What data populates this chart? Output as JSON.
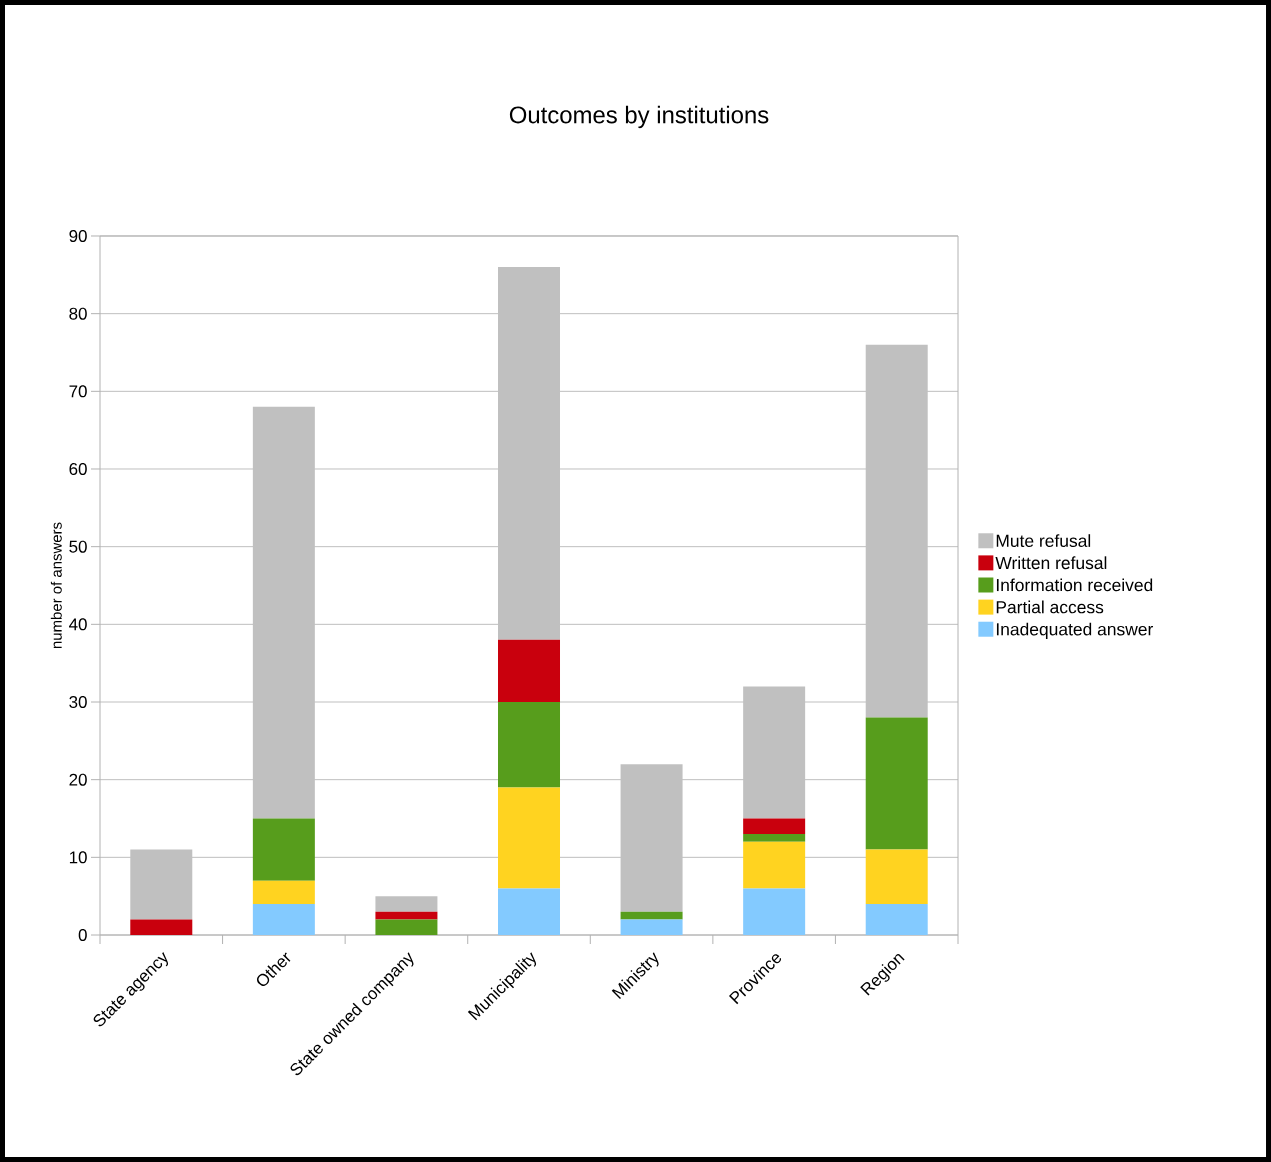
{
  "chart_data": {
    "type": "bar",
    "title": "Outcomes by institutions",
    "ylabel": "number of answers",
    "categories": [
      "State agency",
      "Other",
      "State owned company",
      "Municipality",
      "Ministry",
      "Province",
      "Region"
    ],
    "series": [
      {
        "name": "Inadequated answer",
        "color": "#83caff",
        "values": [
          0,
          4,
          0,
          6,
          2,
          6,
          4
        ]
      },
      {
        "name": "Partial access",
        "color": "#ffd320",
        "values": [
          0,
          3,
          0,
          13,
          0,
          6,
          7
        ]
      },
      {
        "name": "Information received",
        "color": "#579d1c",
        "values": [
          0,
          8,
          2,
          11,
          1,
          1,
          17
        ]
      },
      {
        "name": "Written refusal",
        "color": "#c9000d",
        "values": [
          2,
          0,
          1,
          8,
          0,
          2,
          0
        ]
      },
      {
        "name": "Mute refusal",
        "color": "#c0c0c0",
        "values": [
          9,
          53,
          2,
          48,
          19,
          17,
          48
        ]
      }
    ],
    "stacked": true,
    "ylim": [
      0,
      90
    ],
    "yticks": [
      0,
      10,
      20,
      30,
      40,
      50,
      60,
      70,
      80,
      90
    ],
    "grid": "y",
    "legend": "right"
  }
}
